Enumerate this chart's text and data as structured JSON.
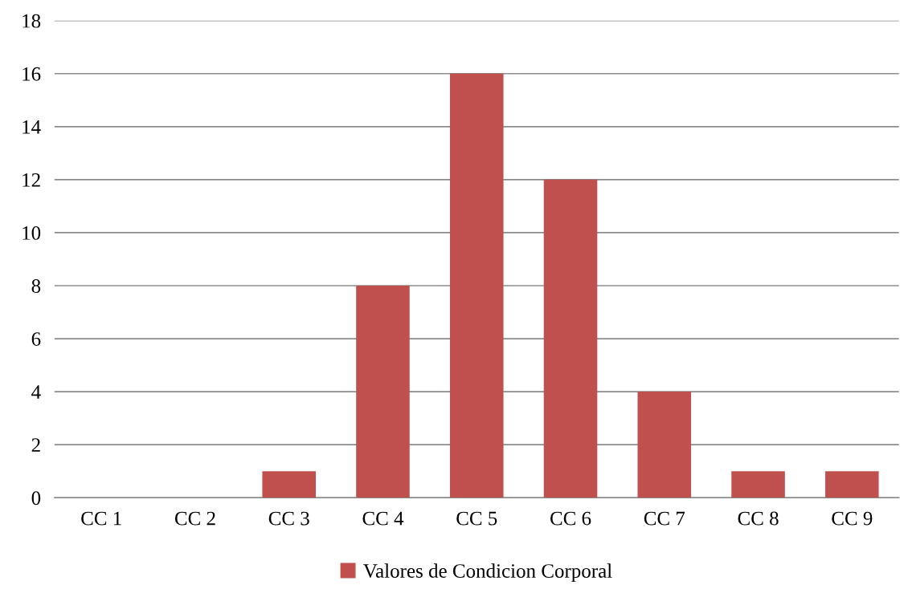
{
  "chart_data": {
    "type": "bar",
    "categories": [
      "CC 1",
      "CC 2",
      "CC 3",
      "CC 4",
      "CC 5",
      "CC 6",
      "CC 7",
      "CC 8",
      "CC 9"
    ],
    "series": [
      {
        "name": "Valores de Condicion Corporal",
        "color": "#c0504d",
        "values": [
          0,
          0,
          1,
          8,
          16,
          12,
          4,
          1,
          1
        ]
      }
    ],
    "ylim": [
      0,
      18
    ],
    "yticks": [
      0,
      2,
      4,
      6,
      8,
      10,
      12,
      14,
      16,
      18
    ],
    "grid": "y",
    "legend": "bottom"
  }
}
